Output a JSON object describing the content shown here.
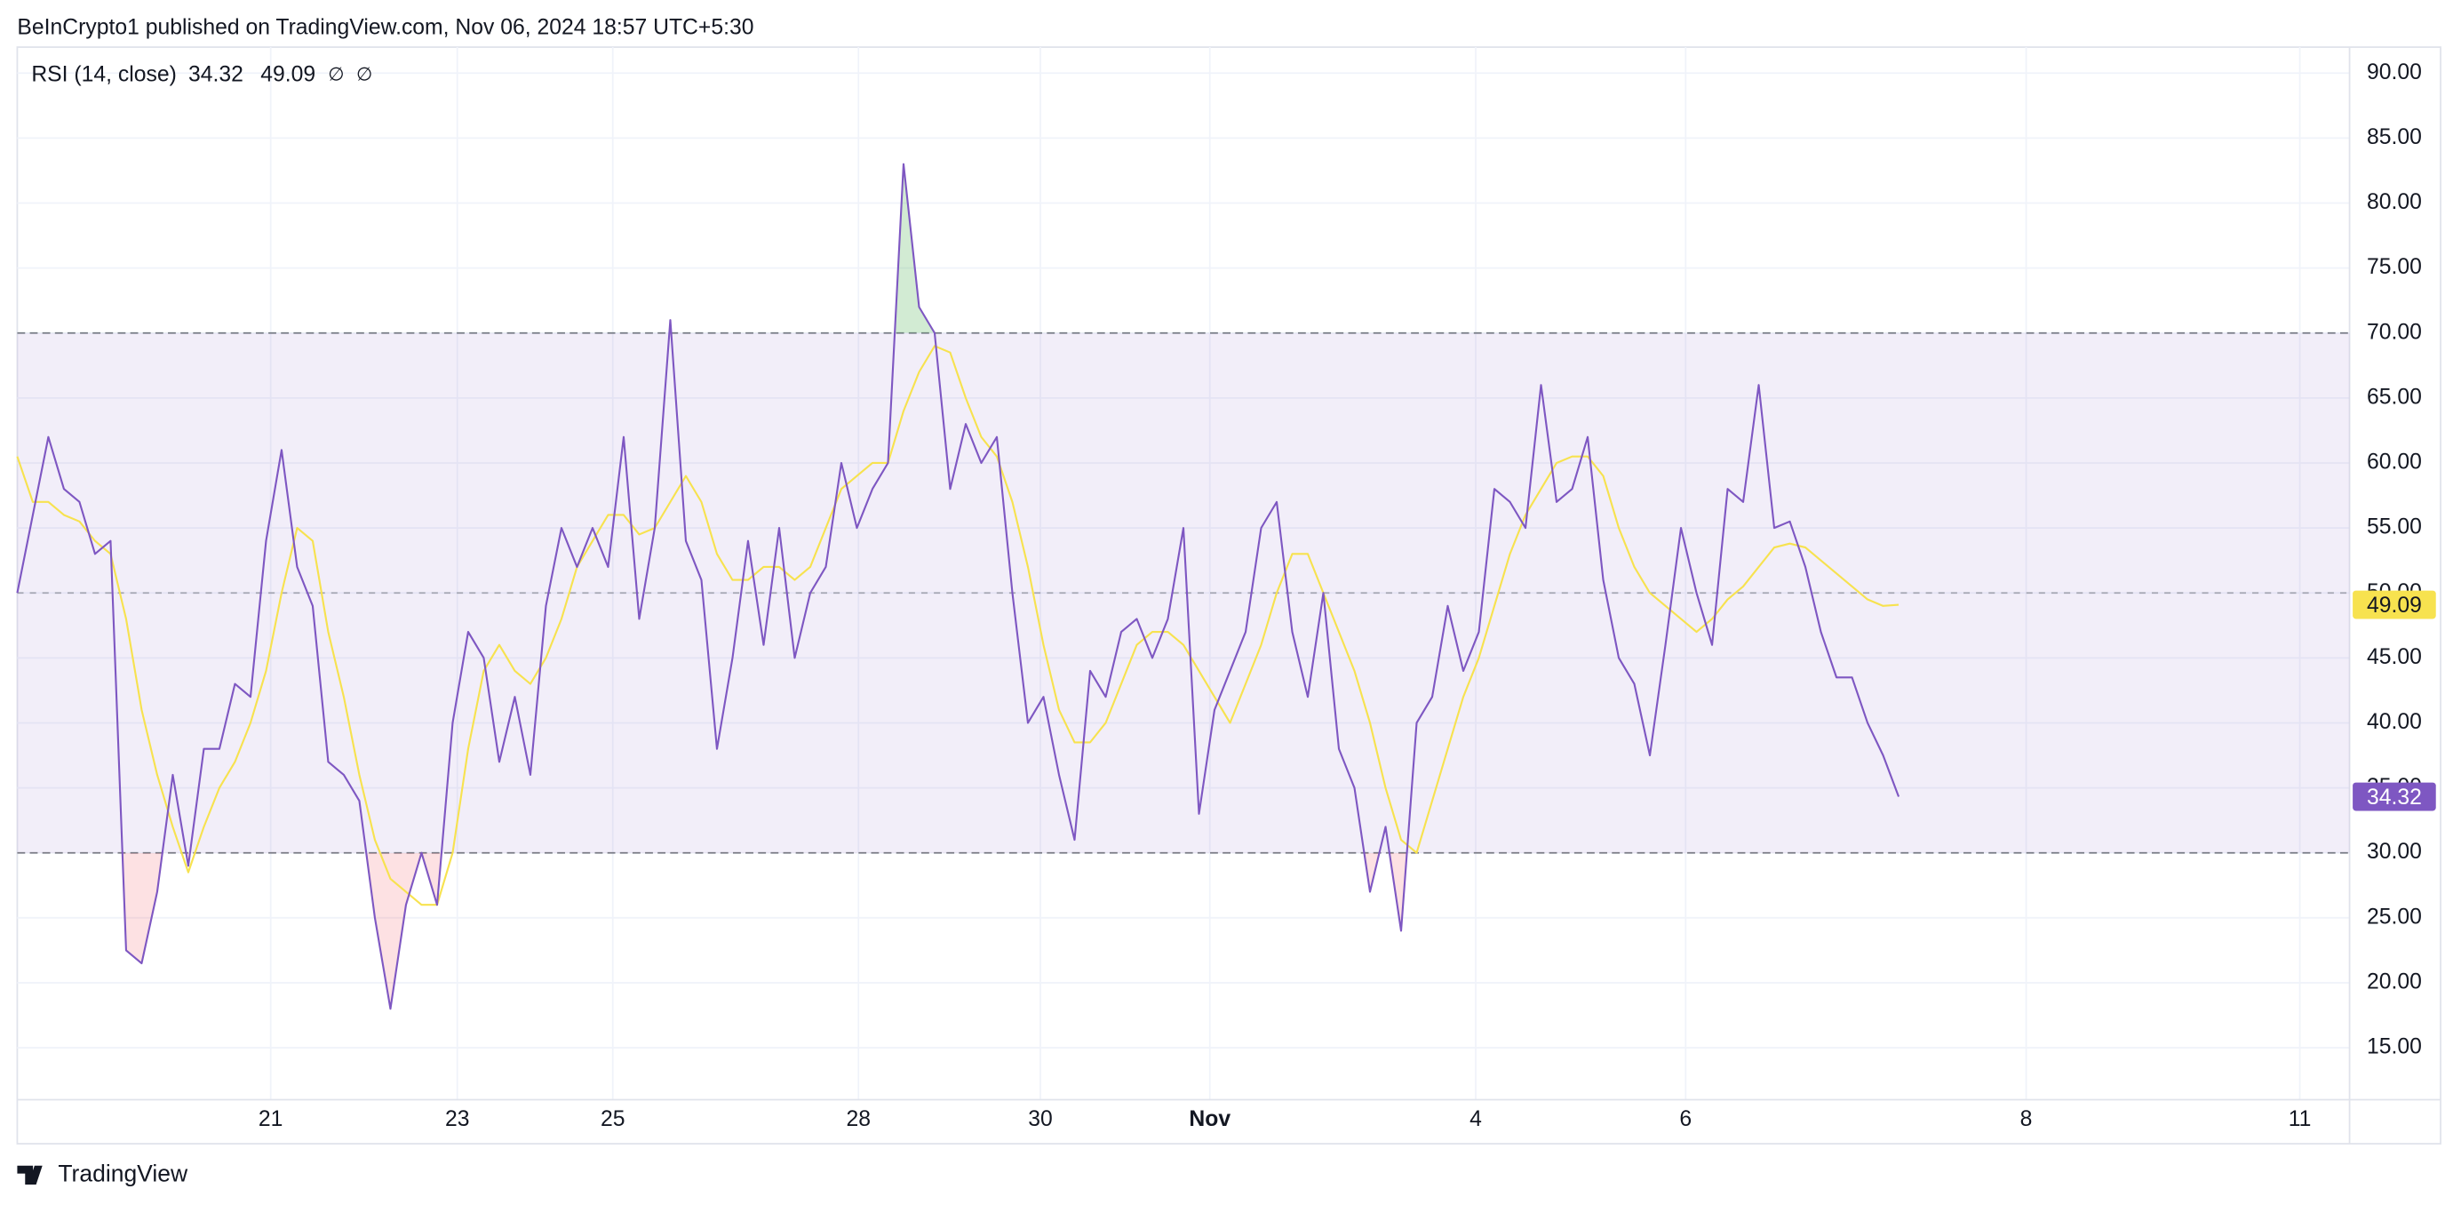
{
  "header": "BeInCrypto1 published on TradingView.com, Nov 06, 2024 18:57 UTC+5:30",
  "footer": "TradingView",
  "chart_data": {
    "type": "line",
    "legend_title": "RSI (14, close)",
    "legend_icons": [
      "∅",
      "∅"
    ],
    "x": [
      0,
      1,
      2,
      3,
      4,
      5,
      6,
      7,
      8,
      9,
      10,
      11,
      12,
      13,
      14,
      15,
      16,
      17,
      18,
      19,
      20,
      21,
      22,
      23,
      24,
      25,
      26,
      27,
      28,
      29,
      30,
      31,
      32,
      33,
      34,
      35,
      36,
      37,
      38,
      39,
      40,
      41,
      42,
      43,
      44,
      45,
      46,
      47,
      48,
      49,
      50,
      51,
      52,
      53,
      54,
      55,
      56,
      57,
      58,
      59,
      60,
      61,
      62,
      63,
      64,
      65,
      66,
      67,
      68,
      69,
      70,
      71,
      72,
      73,
      74,
      75,
      76,
      77,
      78,
      79,
      80,
      81,
      82,
      83,
      84,
      85,
      86,
      87,
      88,
      89,
      90,
      91,
      92,
      93,
      94,
      95,
      96,
      97,
      98,
      99,
      100,
      101,
      102,
      103,
      104,
      105,
      106,
      107,
      108,
      109,
      110,
      111,
      112,
      113,
      114,
      115,
      116,
      117,
      118,
      119,
      120,
      121
    ],
    "xlim": [
      0,
      150
    ],
    "xticks": [
      {
        "value": 16.3,
        "label": "21"
      },
      {
        "value": 28.3,
        "label": "23"
      },
      {
        "value": 38.3,
        "label": "25"
      },
      {
        "value": 54.1,
        "label": "28"
      },
      {
        "value": 65.8,
        "label": "30"
      },
      {
        "value": 76.7,
        "label": "Nov"
      },
      {
        "value": 93.8,
        "label": "4"
      },
      {
        "value": 107.3,
        "label": "6"
      },
      {
        "value": 129.2,
        "label": "8"
      },
      {
        "value": 146.8,
        "label": "11"
      }
    ],
    "ylim": [
      11,
      92
    ],
    "yticks": [
      {
        "value": 15,
        "label": "15.00"
      },
      {
        "value": 20,
        "label": "20.00"
      },
      {
        "value": 25,
        "label": "25.00"
      },
      {
        "value": 30,
        "label": "30.00"
      },
      {
        "value": 35,
        "label": "35.00"
      },
      {
        "value": 40,
        "label": "40.00"
      },
      {
        "value": 45,
        "label": "45.00"
      },
      {
        "value": 50,
        "label": "50.00"
      },
      {
        "value": 55,
        "label": "55.00"
      },
      {
        "value": 60,
        "label": "60.00"
      },
      {
        "value": 65,
        "label": "65.00"
      },
      {
        "value": 70,
        "label": "70.00"
      },
      {
        "value": 75,
        "label": "75.00"
      },
      {
        "value": 80,
        "label": "80.00"
      },
      {
        "value": 85,
        "label": "85.00"
      },
      {
        "value": 90,
        "label": "90.00"
      }
    ],
    "grid": true,
    "bands": {
      "upper": 70,
      "middle": 50,
      "lower": 30,
      "color": "#7e57c2"
    },
    "overbought_color": "#4caf50",
    "oversold_color": "#f23645",
    "series": [
      {
        "color": "#7e57c2",
        "values": [
          50,
          56,
          62,
          58,
          57,
          53,
          54,
          22.5,
          21.5,
          27,
          36,
          29,
          38,
          38,
          43,
          42,
          54,
          61,
          52,
          49,
          37,
          36,
          34,
          25,
          18,
          26,
          30,
          26,
          40,
          47,
          45,
          37,
          42,
          36,
          49,
          55,
          52,
          55,
          52,
          62,
          48,
          55,
          71,
          54,
          51,
          38,
          45,
          54,
          46,
          55,
          45,
          50,
          52,
          60,
          55,
          58,
          60,
          83,
          72,
          70,
          58,
          63,
          60,
          62,
          50,
          40,
          42,
          36,
          31,
          44,
          42,
          47,
          48,
          45,
          48,
          55,
          33,
          41,
          44,
          47,
          55,
          57,
          47,
          42,
          50,
          38,
          35,
          27,
          32,
          24,
          40,
          42,
          49,
          44,
          47,
          58,
          57,
          55,
          66,
          57,
          58,
          62,
          51,
          45,
          43,
          37.5,
          46,
          55,
          50,
          46,
          58,
          57,
          66,
          55,
          55.5,
          52,
          47,
          43.5,
          43.5,
          40,
          37.5,
          34.32
        ]
      },
      {
        "color": "#f7e24f",
        "values": [
          60.5,
          57,
          57,
          56,
          55.5,
          54,
          53,
          48,
          41,
          36,
          32,
          28.5,
          32,
          35,
          37,
          40,
          44,
          50,
          55,
          54,
          47,
          42,
          36,
          31,
          28,
          27,
          26,
          26,
          30,
          38,
          44,
          46,
          44,
          43,
          45,
          48,
          52,
          54,
          56,
          56,
          54.5,
          55,
          57,
          59,
          57,
          53,
          51,
          51,
          52,
          52,
          51,
          52,
          55,
          58,
          59,
          60,
          60,
          64,
          67,
          69,
          68.5,
          65,
          62,
          60.5,
          57,
          52,
          46,
          41,
          38.5,
          38.5,
          40,
          43,
          46,
          47,
          47,
          46,
          44,
          42,
          40,
          43,
          46,
          50,
          53,
          53,
          50,
          47,
          44,
          40,
          35,
          31,
          30,
          34,
          38,
          42,
          45,
          49,
          53,
          56,
          58,
          60,
          60.5,
          60.5,
          59,
          55,
          52,
          50,
          49,
          48,
          47,
          48,
          49.5,
          50.5,
          52,
          53.5,
          53.8,
          53.5,
          52.5,
          51.5,
          50.5,
          49.5,
          49,
          49.09
        ]
      }
    ]
  }
}
